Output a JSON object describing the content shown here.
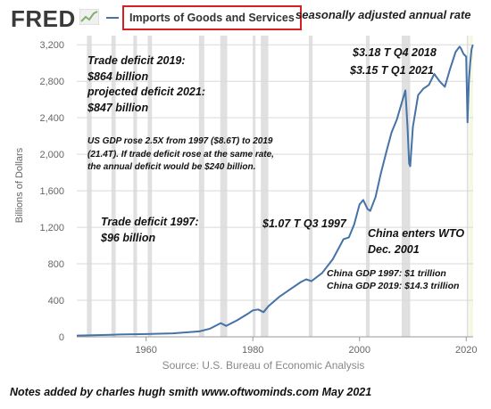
{
  "header": {
    "logo": "FRED",
    "logo_icon": "line-chart-icon",
    "series_title": "Imports of Goods and Services",
    "subtitle": "seasonally adjusted annual rate"
  },
  "chart_data": {
    "type": "line",
    "title": "Imports of Goods and Services",
    "subtitle": "seasonally adjusted annual rate",
    "xlabel": "",
    "ylabel": "Billions of Dollars",
    "source": "Source: U.S. Bureau of Economic Analysis",
    "xlim": [
      1947,
      2021.3
    ],
    "ylim": [
      0,
      3300
    ],
    "x_ticks": [
      1960,
      1980,
      2000,
      2020
    ],
    "y_ticks": [
      0,
      400,
      800,
      1200,
      1600,
      2000,
      2400,
      2800,
      3200
    ],
    "y_tick_labels": [
      "0",
      "400",
      "800",
      "1,200",
      "1,600",
      "2,000",
      "2,400",
      "2,800",
      "3,200"
    ],
    "grid": "horizontal",
    "line_color": "#4572a7",
    "recession_color": "#e0e0e0",
    "recessions": [
      [
        1948.9,
        1949.8
      ],
      [
        1953.5,
        1954.3
      ],
      [
        1957.6,
        1958.3
      ],
      [
        1960.3,
        1961.1
      ],
      [
        1969.9,
        1970.9
      ],
      [
        1973.9,
        1975.2
      ],
      [
        1980.0,
        1980.5
      ],
      [
        1981.5,
        1982.9
      ],
      [
        1990.5,
        1991.2
      ],
      [
        2001.2,
        2001.9
      ],
      [
        2007.9,
        2009.5
      ],
      [
        2020.1,
        2020.4
      ]
    ],
    "series": [
      {
        "x": [
          1947,
          1950,
          1955,
          1960,
          1965,
          1970,
          1972,
          1974,
          1975,
          1977,
          1979,
          1980,
          1981,
          1982,
          1983,
          1985,
          1987,
          1989,
          1990,
          1991,
          1993,
          1995,
          1997,
          1998,
          1999,
          2000,
          2000.7,
          2001.5,
          2002,
          2003,
          2004,
          2005,
          2006,
          2007,
          2008.0,
          2008.6,
          2009.0,
          2009.3,
          2009.5,
          2010,
          2011,
          2012,
          2013,
          2014,
          2015,
          2016,
          2017,
          2018,
          2018.75,
          2019,
          2019.5,
          2020.0,
          2020.25,
          2020.5,
          2020.75,
          2021.0,
          2021.25
        ],
        "y": [
          14,
          17,
          25,
          30,
          38,
          60,
          90,
          150,
          120,
          180,
          250,
          290,
          300,
          270,
          340,
          440,
          520,
          600,
          630,
          610,
          700,
          850,
          1070,
          1090,
          1230,
          1450,
          1500,
          1400,
          1380,
          1530,
          1790,
          2020,
          2240,
          2380,
          2580,
          2700,
          2300,
          1900,
          1870,
          2300,
          2650,
          2720,
          2760,
          2880,
          2800,
          2740,
          2940,
          3120,
          3180,
          3160,
          3100,
          3070,
          2350,
          2800,
          3000,
          3150,
          3200
        ]
      }
    ],
    "annotations": [
      {
        "lines": [
          "Trade deficit 2019:",
          "$864 billion",
          "projected deficit 2021:",
          "$847 billion"
        ]
      },
      {
        "lines": [
          "US GDP rose 2.5X from 1997 ($8.6T) to 2019",
          "(21.4T). If trade deficit rose at the same rate,",
          "the annual deficit would be $240 billion."
        ]
      },
      {
        "lines": [
          "Trade deficit 1997:",
          "$96 billion"
        ]
      },
      {
        "lines": [
          "$1.07 T  Q3 1997"
        ]
      },
      {
        "lines": [
          "China enters WTO",
          "Dec. 2001"
        ]
      },
      {
        "lines": [
          "China GDP 1997: $1 trillion",
          "China GDP 2019: $14.3 trillion"
        ]
      },
      {
        "lines": [
          "$3.18 T  Q4 2018"
        ]
      },
      {
        "lines": [
          "$3.15 T   Q1 2021"
        ]
      }
    ]
  },
  "footer": {
    "note": "Notes added by charles hugh smith   www.oftwominds.com   May 2021"
  }
}
